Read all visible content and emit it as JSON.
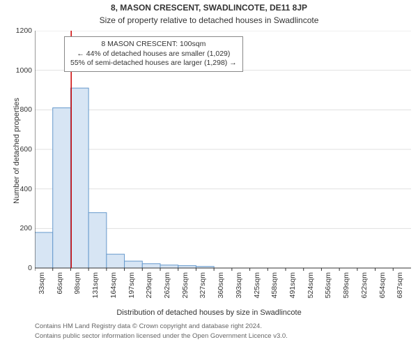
{
  "title_main": "8, MASON CRESCENT, SWADLINCOTE, DE11 8JP",
  "title_sub": "Size of property relative to detached houses in Swadlincote",
  "ylabel": "Number of detached properties",
  "xlabel": "Distribution of detached houses by size in Swadlincote",
  "footer_line1": "Contains HM Land Registry data © Crown copyright and database right 2024.",
  "footer_line2": "Contains public sector information licensed under the Open Government Licence v3.0.",
  "annotation": {
    "line1": "8 MASON CRESCENT: 100sqm",
    "line2": "← 44% of detached houses are smaller (1,029)",
    "line3": "55% of semi-detached houses are larger (1,298) →"
  },
  "chart": {
    "type": "histogram",
    "background_color": "#ffffff",
    "grid_color": "#e0e0e0",
    "axis_color": "#333333",
    "bar_fill": "#d7e5f4",
    "bar_stroke": "#6699cc",
    "marker_line_color": "#cc0000",
    "marker_line_width": 1.5,
    "marker_x": 100,
    "bar_width_ratio": 1.0,
    "ylim": [
      0,
      1200
    ],
    "ytick_step": 200,
    "bin_width": 33,
    "x_start": 33,
    "categories": [
      "33sqm",
      "66sqm",
      "98sqm",
      "131sqm",
      "164sqm",
      "197sqm",
      "229sqm",
      "262sqm",
      "295sqm",
      "327sqm",
      "360sqm",
      "393sqm",
      "425sqm",
      "458sqm",
      "491sqm",
      "524sqm",
      "556sqm",
      "589sqm",
      "622sqm",
      "654sqm",
      "687sqm"
    ],
    "values": [
      180,
      810,
      910,
      280,
      70,
      35,
      22,
      15,
      12,
      8,
      0,
      0,
      0,
      0,
      0,
      0,
      0,
      0,
      0,
      0,
      0
    ],
    "title_fontsize": 12,
    "label_fontsize": 11,
    "tick_fontsize": 10.5
  }
}
